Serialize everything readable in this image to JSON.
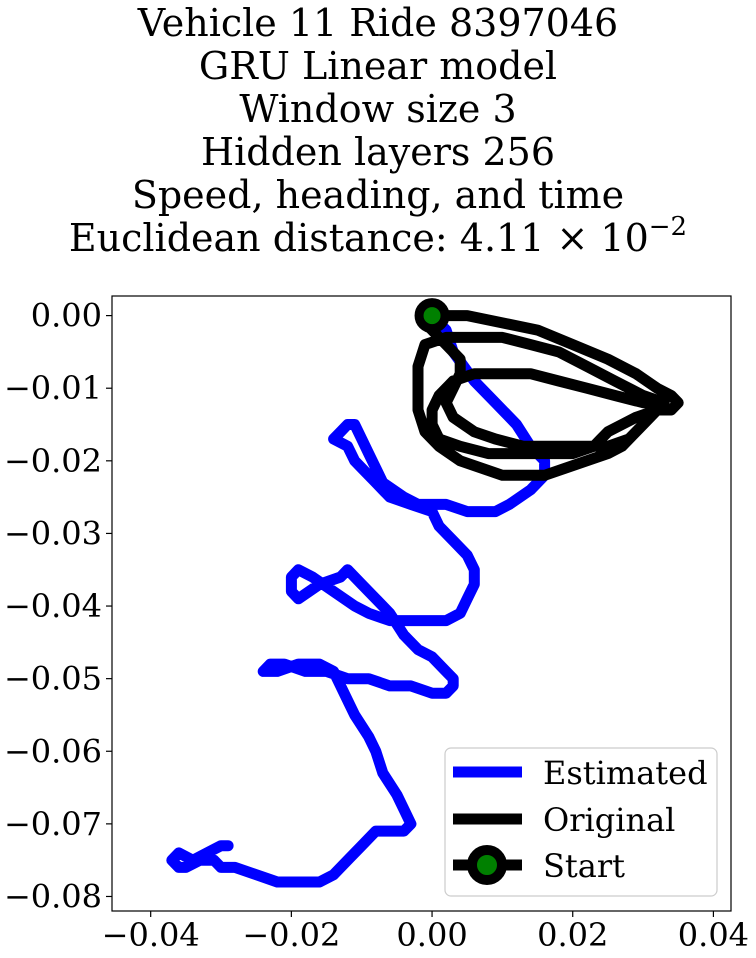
{
  "chart_data": {
    "type": "line",
    "title_lines": [
      "Vehicle 11 Ride 8397046",
      "GRU Linear model",
      "Window size 3",
      "Hidden layers 256",
      "Speed, heading, and time"
    ],
    "title_metric_label": "Euclidean distance: 4.11",
    "title_metric_times": "×",
    "title_metric_base": "10",
    "title_metric_exponent": "−2",
    "xlim": [
      -0.0455,
      0.0425
    ],
    "ylim": [
      -0.082,
      0.0027
    ],
    "x_ticks": [
      -0.04,
      -0.02,
      0.0,
      0.02,
      0.04
    ],
    "x_tick_labels": [
      "−0.04",
      "−0.02",
      "0.00",
      "0.02",
      "0.04"
    ],
    "y_ticks": [
      0.0,
      -0.01,
      -0.02,
      -0.03,
      -0.04,
      -0.05,
      -0.06,
      -0.07,
      -0.08
    ],
    "y_tick_labels": [
      "0.00",
      "−0.01",
      "−0.02",
      "−0.03",
      "−0.04",
      "−0.05",
      "−0.06",
      "−0.07",
      "−0.08"
    ],
    "grid": false,
    "legend_position": "lower right",
    "legend": [
      {
        "label": "Estimated",
        "color": "#0000ff",
        "style": "line"
      },
      {
        "label": "Original",
        "color": "#000000",
        "style": "line"
      },
      {
        "label": "Start",
        "color": "#000000",
        "marker_color": "#008000",
        "style": "marker"
      }
    ],
    "series": [
      {
        "name": "Estimated",
        "color": "#0000ff",
        "points": [
          [
            0.0,
            0.0
          ],
          [
            0.002,
            -0.002
          ],
          [
            0.003,
            -0.005
          ],
          [
            0.006,
            -0.009
          ],
          [
            0.009,
            -0.012
          ],
          [
            0.012,
            -0.015
          ],
          [
            0.014,
            -0.018
          ],
          [
            0.016,
            -0.02
          ],
          [
            0.016,
            -0.022
          ],
          [
            0.014,
            -0.024
          ],
          [
            0.011,
            -0.026
          ],
          [
            0.009,
            -0.027
          ],
          [
            0.005,
            -0.027
          ],
          [
            0.002,
            -0.026
          ],
          [
            -0.002,
            -0.026
          ],
          [
            -0.004,
            -0.025
          ],
          [
            -0.007,
            -0.023
          ],
          [
            -0.008,
            -0.021
          ],
          [
            -0.009,
            -0.019
          ],
          [
            -0.01,
            -0.017
          ],
          [
            -0.011,
            -0.015
          ],
          [
            -0.012,
            -0.015
          ],
          [
            -0.013,
            -0.016
          ],
          [
            -0.014,
            -0.017
          ],
          [
            -0.012,
            -0.018
          ],
          [
            -0.011,
            -0.02
          ],
          [
            -0.01,
            -0.021
          ],
          [
            -0.008,
            -0.023
          ],
          [
            -0.006,
            -0.025
          ],
          [
            -0.003,
            -0.026
          ],
          [
            0.0,
            -0.027
          ],
          [
            0.001,
            -0.029
          ],
          [
            0.003,
            -0.031
          ],
          [
            0.005,
            -0.033
          ],
          [
            0.006,
            -0.035
          ],
          [
            0.006,
            -0.037
          ],
          [
            0.005,
            -0.039
          ],
          [
            0.004,
            -0.041
          ],
          [
            0.002,
            -0.042
          ],
          [
            0.0,
            -0.042
          ],
          [
            -0.003,
            -0.042
          ],
          [
            -0.006,
            -0.042
          ],
          [
            -0.009,
            -0.041
          ],
          [
            -0.011,
            -0.04
          ],
          [
            -0.014,
            -0.038
          ],
          [
            -0.017,
            -0.036
          ],
          [
            -0.019,
            -0.035
          ],
          [
            -0.02,
            -0.036
          ],
          [
            -0.02,
            -0.038
          ],
          [
            -0.019,
            -0.039
          ],
          [
            -0.016,
            -0.037
          ],
          [
            -0.013,
            -0.036
          ],
          [
            -0.012,
            -0.035
          ],
          [
            -0.01,
            -0.037
          ],
          [
            -0.008,
            -0.039
          ],
          [
            -0.006,
            -0.041
          ],
          [
            -0.004,
            -0.044
          ],
          [
            -0.002,
            -0.046
          ],
          [
            0.0,
            -0.047
          ],
          [
            0.002,
            -0.049
          ],
          [
            0.003,
            -0.05
          ],
          [
            0.003,
            -0.051
          ],
          [
            0.002,
            -0.052
          ],
          [
            0.0,
            -0.052
          ],
          [
            -0.003,
            -0.051
          ],
          [
            -0.006,
            -0.051
          ],
          [
            -0.009,
            -0.05
          ],
          [
            -0.012,
            -0.05
          ],
          [
            -0.015,
            -0.049
          ],
          [
            -0.018,
            -0.049
          ],
          [
            -0.021,
            -0.048
          ],
          [
            -0.023,
            -0.048
          ],
          [
            -0.024,
            -0.049
          ],
          [
            -0.022,
            -0.049
          ],
          [
            -0.019,
            -0.048
          ],
          [
            -0.016,
            -0.048
          ],
          [
            -0.014,
            -0.049
          ],
          [
            -0.013,
            -0.051
          ],
          [
            -0.012,
            -0.053
          ],
          [
            -0.011,
            -0.055
          ],
          [
            -0.009,
            -0.058
          ],
          [
            -0.008,
            -0.06
          ],
          [
            -0.007,
            -0.063
          ],
          [
            -0.005,
            -0.066
          ],
          [
            -0.004,
            -0.068
          ],
          [
            -0.003,
            -0.07
          ],
          [
            -0.004,
            -0.071
          ],
          [
            -0.006,
            -0.071
          ],
          [
            -0.008,
            -0.071
          ],
          [
            -0.01,
            -0.073
          ],
          [
            -0.012,
            -0.075
          ],
          [
            -0.014,
            -0.077
          ],
          [
            -0.016,
            -0.078
          ],
          [
            -0.019,
            -0.078
          ],
          [
            -0.022,
            -0.078
          ],
          [
            -0.025,
            -0.077
          ],
          [
            -0.028,
            -0.076
          ],
          [
            -0.03,
            -0.076
          ],
          [
            -0.031,
            -0.075
          ],
          [
            -0.033,
            -0.075
          ],
          [
            -0.035,
            -0.076
          ],
          [
            -0.036,
            -0.076
          ],
          [
            -0.037,
            -0.075
          ],
          [
            -0.036,
            -0.074
          ],
          [
            -0.034,
            -0.075
          ],
          [
            -0.032,
            -0.074
          ],
          [
            -0.03,
            -0.073
          ],
          [
            -0.029,
            -0.073
          ]
        ]
      },
      {
        "name": "Original",
        "color": "#000000",
        "points": [
          [
            0.0,
            0.0
          ],
          [
            0.005,
            0.0
          ],
          [
            0.01,
            -0.001
          ],
          [
            0.015,
            -0.002
          ],
          [
            0.02,
            -0.004
          ],
          [
            0.025,
            -0.006
          ],
          [
            0.029,
            -0.008
          ],
          [
            0.032,
            -0.01
          ],
          [
            0.034,
            -0.011
          ],
          [
            0.035,
            -0.012
          ],
          [
            0.034,
            -0.013
          ],
          [
            0.032,
            -0.013
          ],
          [
            0.031,
            -0.014
          ],
          [
            0.029,
            -0.016
          ],
          [
            0.027,
            -0.018
          ],
          [
            0.025,
            -0.019
          ],
          [
            0.022,
            -0.02
          ],
          [
            0.019,
            -0.021
          ],
          [
            0.016,
            -0.022
          ],
          [
            0.013,
            -0.022
          ],
          [
            0.01,
            -0.022
          ],
          [
            0.007,
            -0.021
          ],
          [
            0.004,
            -0.02
          ],
          [
            0.001,
            -0.018
          ],
          [
            -0.001,
            -0.016
          ],
          [
            -0.002,
            -0.013
          ],
          [
            -0.002,
            -0.01
          ],
          [
            -0.002,
            -0.007
          ],
          [
            -0.001,
            -0.004
          ],
          [
            0.002,
            -0.003
          ],
          [
            0.006,
            -0.003
          ],
          [
            0.01,
            -0.003
          ],
          [
            0.014,
            -0.004
          ],
          [
            0.018,
            -0.005
          ],
          [
            0.022,
            -0.007
          ],
          [
            0.026,
            -0.009
          ],
          [
            0.03,
            -0.011
          ],
          [
            0.033,
            -0.012
          ],
          [
            0.032,
            -0.013
          ],
          [
            0.029,
            -0.014
          ],
          [
            0.027,
            -0.015
          ],
          [
            0.025,
            -0.016
          ],
          [
            0.024,
            -0.017
          ],
          [
            0.023,
            -0.018
          ],
          [
            0.02,
            -0.019
          ],
          [
            0.016,
            -0.019
          ],
          [
            0.012,
            -0.019
          ],
          [
            0.008,
            -0.019
          ],
          [
            0.004,
            -0.018
          ],
          [
            0.001,
            -0.017
          ],
          [
            0.0,
            -0.015
          ],
          [
            0.0,
            -0.013
          ],
          [
            0.001,
            -0.011
          ],
          [
            0.003,
            -0.009
          ],
          [
            0.006,
            -0.008
          ],
          [
            0.01,
            -0.008
          ],
          [
            0.014,
            -0.008
          ],
          [
            0.018,
            -0.009
          ],
          [
            0.022,
            -0.01
          ],
          [
            0.026,
            -0.011
          ],
          [
            0.03,
            -0.012
          ],
          [
            0.033,
            -0.012
          ],
          [
            0.032,
            -0.013
          ],
          [
            0.03,
            -0.015
          ],
          [
            0.028,
            -0.017
          ],
          [
            0.025,
            -0.018
          ],
          [
            0.021,
            -0.018
          ],
          [
            0.017,
            -0.018
          ],
          [
            0.013,
            -0.018
          ],
          [
            0.009,
            -0.017
          ],
          [
            0.006,
            -0.016
          ],
          [
            0.003,
            -0.014
          ],
          [
            0.002,
            -0.012
          ],
          [
            0.003,
            -0.01
          ],
          [
            0.004,
            -0.008
          ],
          [
            0.004,
            -0.006
          ],
          [
            0.002,
            -0.004
          ],
          [
            0.001,
            -0.003
          ],
          [
            0.0,
            -0.002
          ],
          [
            -0.001,
            -0.001
          ],
          [
            0.0,
            0.0
          ]
        ]
      }
    ],
    "start_point": {
      "name": "Start",
      "x": 0.0,
      "y": 0.0
    }
  }
}
